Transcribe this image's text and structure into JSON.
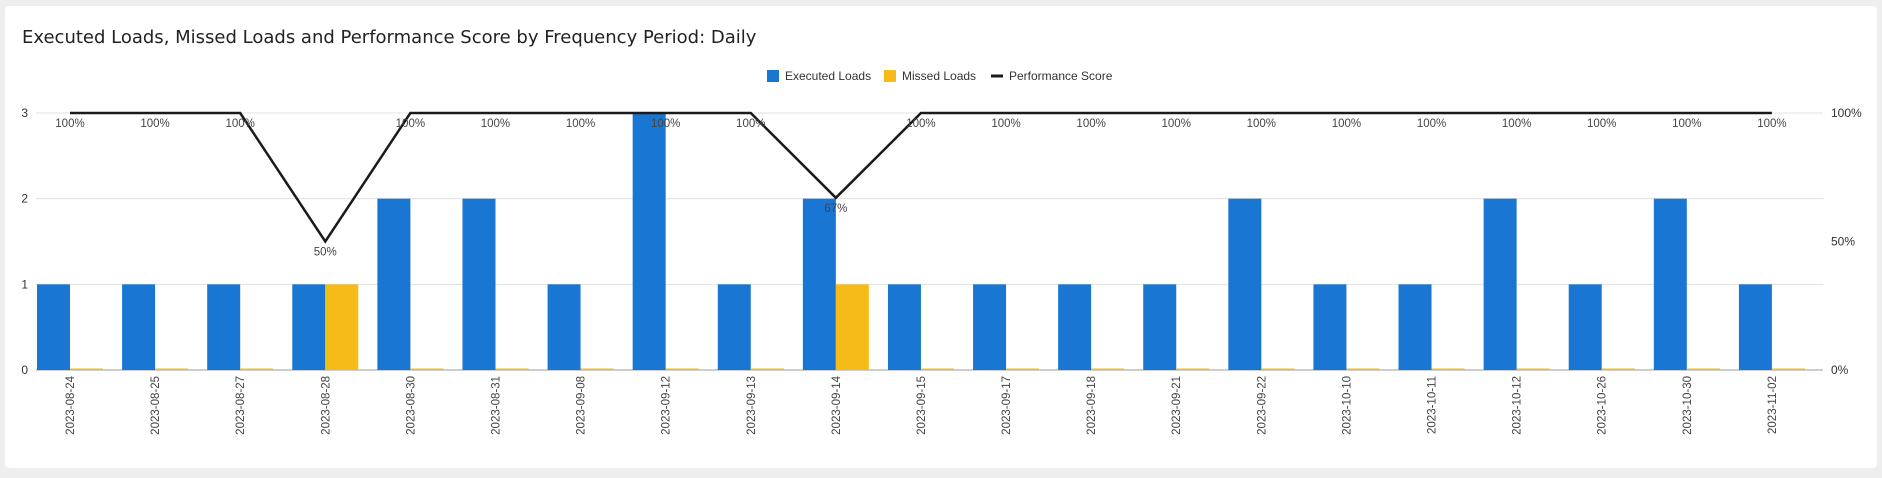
{
  "chart_data": {
    "type": "bar",
    "title": "Executed Loads, Missed Loads and Performance Score by Frequency Period: Daily",
    "categories": [
      "2023-08-24",
      "2023-08-25",
      "2023-08-27",
      "2023-08-28",
      "2023-08-30",
      "2023-08-31",
      "2023-09-08",
      "2023-09-12",
      "2023-09-13",
      "2023-09-14",
      "2023-09-15",
      "2023-09-17",
      "2023-09-18",
      "2023-09-21",
      "2023-09-22",
      "2023-10-10",
      "2023-10-11",
      "2023-10-12",
      "2023-10-26",
      "2023-10-30",
      "2023-11-02"
    ],
    "series": [
      {
        "name": "Executed Loads",
        "kind": "bar",
        "axis": "left",
        "color": "#1976d2",
        "values": [
          1,
          1,
          1,
          1,
          2,
          2,
          1,
          3,
          1,
          2,
          1,
          1,
          1,
          1,
          2,
          1,
          1,
          2,
          1,
          2,
          1
        ]
      },
      {
        "name": "Missed Loads",
        "kind": "bar",
        "axis": "left",
        "color": "#f5bc19",
        "values": [
          0,
          0,
          0,
          1,
          0,
          0,
          0,
          0,
          0,
          1,
          0,
          0,
          0,
          0,
          0,
          0,
          0,
          0,
          0,
          0,
          0
        ]
      },
      {
        "name": "Performance Score",
        "kind": "line",
        "axis": "right",
        "color": "#1a1a1a",
        "values": [
          100,
          100,
          100,
          50,
          100,
          100,
          100,
          100,
          100,
          67,
          100,
          100,
          100,
          100,
          100,
          100,
          100,
          100,
          100,
          100,
          100
        ],
        "labels": [
          "100%",
          "100%",
          "100%",
          "50%",
          "100%",
          "100%",
          "100%",
          "100%",
          "100%",
          "67%",
          "100%",
          "100%",
          "100%",
          "100%",
          "100%",
          "100%",
          "100%",
          "100%",
          "100%",
          "100%",
          "100%"
        ]
      }
    ],
    "y_left": {
      "ylim": [
        0,
        3
      ],
      "ticks": [
        "0",
        "1",
        "2",
        "3"
      ]
    },
    "y_right": {
      "ylim": [
        0,
        100
      ],
      "ticks": [
        "0%",
        "50%",
        "100%"
      ]
    },
    "legend_position": "top-center",
    "grid": true
  }
}
